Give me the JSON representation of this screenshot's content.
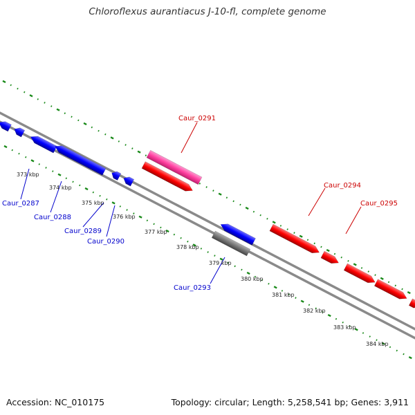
{
  "title": "Chloroflexus aurantiacus J-10-fl, complete genome",
  "footer": {
    "accession": "Accession: NC_010175",
    "topology": "Topology: circular; Length: 5,258,541 bp; Genes: 3,911"
  },
  "colors": {
    "forward_strand": "#ff0000",
    "reverse_strand": "#0000ff",
    "other_strand": "#777777",
    "highlight": "#ff3fa0",
    "ticks": "#1a8a1a",
    "label_forward": "#cc0000",
    "label_reverse": "#0000cc"
  },
  "position_labels": [
    "373 kbp",
    "374 kbp",
    "375 kbp",
    "376 kbp",
    "377 kbp",
    "378 kbp",
    "379 kbp",
    "380 kbp",
    "381 kbp",
    "382 kbp",
    "383 kbp",
    "384 kbp"
  ],
  "gene_labels": {
    "forward": [
      "Caur_0291",
      "Caur_0294",
      "Caur_0295"
    ],
    "reverse": [
      "Caur_0287",
      "Caur_0288",
      "Caur_0289",
      "Caur_0290",
      "Caur_0293"
    ]
  }
}
